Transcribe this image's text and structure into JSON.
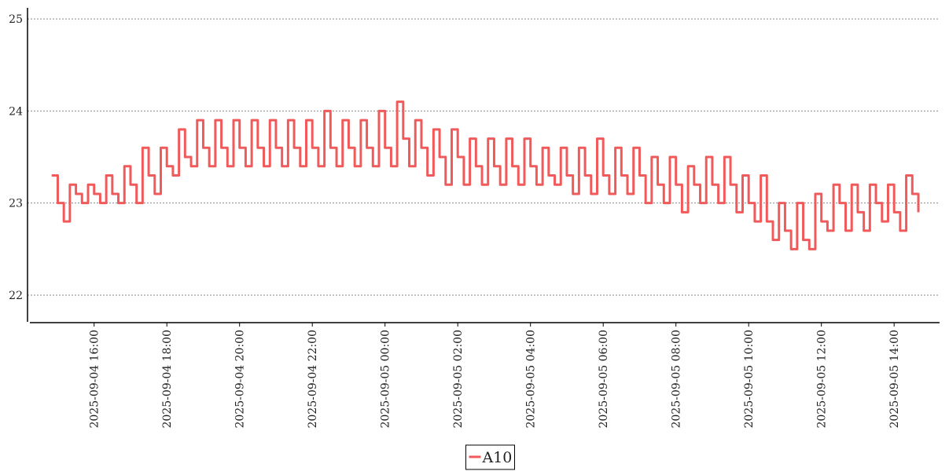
{
  "chart_data": {
    "type": "line",
    "drawstyle": "steps",
    "x": [
      "2025-09-04 14:50",
      "2025-09-04 15:00",
      "2025-09-04 15:10",
      "2025-09-04 15:20",
      "2025-09-04 15:30",
      "2025-09-04 15:40",
      "2025-09-04 15:50",
      "2025-09-04 16:00",
      "2025-09-04 16:10",
      "2025-09-04 16:20",
      "2025-09-04 16:30",
      "2025-09-04 16:40",
      "2025-09-04 16:50",
      "2025-09-04 17:00",
      "2025-09-04 17:10",
      "2025-09-04 17:20",
      "2025-09-04 17:30",
      "2025-09-04 17:40",
      "2025-09-04 17:50",
      "2025-09-04 18:00",
      "2025-09-04 18:10",
      "2025-09-04 18:20",
      "2025-09-04 18:30",
      "2025-09-04 18:40",
      "2025-09-04 18:50",
      "2025-09-04 19:00",
      "2025-09-04 19:10",
      "2025-09-04 19:20",
      "2025-09-04 19:30",
      "2025-09-04 19:40",
      "2025-09-04 19:50",
      "2025-09-04 20:00",
      "2025-09-04 20:10",
      "2025-09-04 20:20",
      "2025-09-04 20:30",
      "2025-09-04 20:40",
      "2025-09-04 20:50",
      "2025-09-04 21:00",
      "2025-09-04 21:10",
      "2025-09-04 21:20",
      "2025-09-04 21:30",
      "2025-09-04 21:40",
      "2025-09-04 21:50",
      "2025-09-04 22:00",
      "2025-09-04 22:10",
      "2025-09-04 22:20",
      "2025-09-04 22:30",
      "2025-09-04 22:40",
      "2025-09-04 22:50",
      "2025-09-04 23:00",
      "2025-09-04 23:10",
      "2025-09-04 23:20",
      "2025-09-04 23:30",
      "2025-09-04 23:40",
      "2025-09-04 23:50",
      "2025-09-05 00:00",
      "2025-09-05 00:10",
      "2025-09-05 00:20",
      "2025-09-05 00:30",
      "2025-09-05 00:40",
      "2025-09-05 00:50",
      "2025-09-05 01:00",
      "2025-09-05 01:10",
      "2025-09-05 01:20",
      "2025-09-05 01:30",
      "2025-09-05 01:40",
      "2025-09-05 01:50",
      "2025-09-05 02:00",
      "2025-09-05 02:10",
      "2025-09-05 02:20",
      "2025-09-05 02:30",
      "2025-09-05 02:40",
      "2025-09-05 02:50",
      "2025-09-05 03:00",
      "2025-09-05 03:10",
      "2025-09-05 03:20",
      "2025-09-05 03:30",
      "2025-09-05 03:40",
      "2025-09-05 03:50",
      "2025-09-05 04:00",
      "2025-09-05 04:10",
      "2025-09-05 04:20",
      "2025-09-05 04:30",
      "2025-09-05 04:40",
      "2025-09-05 04:50",
      "2025-09-05 05:00",
      "2025-09-05 05:10",
      "2025-09-05 05:20",
      "2025-09-05 05:30",
      "2025-09-05 05:40",
      "2025-09-05 05:50",
      "2025-09-05 06:00",
      "2025-09-05 06:10",
      "2025-09-05 06:20",
      "2025-09-05 06:30",
      "2025-09-05 06:40",
      "2025-09-05 06:50",
      "2025-09-05 07:00",
      "2025-09-05 07:10",
      "2025-09-05 07:20",
      "2025-09-05 07:30",
      "2025-09-05 07:40",
      "2025-09-05 07:50",
      "2025-09-05 08:00",
      "2025-09-05 08:10",
      "2025-09-05 08:20",
      "2025-09-05 08:30",
      "2025-09-05 08:40",
      "2025-09-05 08:50",
      "2025-09-05 09:00",
      "2025-09-05 09:10",
      "2025-09-05 09:20",
      "2025-09-05 09:30",
      "2025-09-05 09:40",
      "2025-09-05 09:50",
      "2025-09-05 10:00",
      "2025-09-05 10:10",
      "2025-09-05 10:20",
      "2025-09-05 10:30",
      "2025-09-05 10:40",
      "2025-09-05 10:50",
      "2025-09-05 11:00",
      "2025-09-05 11:10",
      "2025-09-05 11:20",
      "2025-09-05 11:30",
      "2025-09-05 11:40",
      "2025-09-05 11:50",
      "2025-09-05 12:00",
      "2025-09-05 12:10",
      "2025-09-05 12:20",
      "2025-09-05 12:30",
      "2025-09-05 12:40",
      "2025-09-05 12:50",
      "2025-09-05 13:00",
      "2025-09-05 13:10",
      "2025-09-05 13:20",
      "2025-09-05 13:30",
      "2025-09-05 13:40",
      "2025-09-05 13:50",
      "2025-09-05 14:00",
      "2025-09-05 14:10",
      "2025-09-05 14:20",
      "2025-09-05 14:30",
      "2025-09-05 14:40"
    ],
    "series": [
      {
        "name": "A10",
        "color": "#f05a5a",
        "values": [
          23.3,
          23.0,
          22.8,
          23.2,
          23.1,
          23.0,
          23.2,
          23.1,
          23.0,
          23.3,
          23.1,
          23.0,
          23.4,
          23.2,
          23.0,
          23.6,
          23.3,
          23.1,
          23.6,
          23.4,
          23.3,
          23.8,
          23.5,
          23.4,
          23.9,
          23.6,
          23.4,
          23.9,
          23.6,
          23.4,
          23.9,
          23.6,
          23.4,
          23.9,
          23.6,
          23.4,
          23.9,
          23.6,
          23.4,
          23.9,
          23.6,
          23.4,
          23.9,
          23.6,
          23.4,
          24.0,
          23.6,
          23.4,
          23.9,
          23.6,
          23.4,
          23.9,
          23.6,
          23.4,
          24.0,
          23.6,
          23.4,
          24.1,
          23.7,
          23.4,
          23.9,
          23.6,
          23.3,
          23.8,
          23.5,
          23.2,
          23.8,
          23.5,
          23.2,
          23.7,
          23.4,
          23.2,
          23.7,
          23.4,
          23.2,
          23.7,
          23.4,
          23.2,
          23.7,
          23.4,
          23.2,
          23.6,
          23.3,
          23.2,
          23.6,
          23.3,
          23.1,
          23.6,
          23.3,
          23.1,
          23.7,
          23.3,
          23.1,
          23.6,
          23.3,
          23.1,
          23.6,
          23.3,
          23.0,
          23.5,
          23.2,
          23.0,
          23.5,
          23.2,
          22.9,
          23.4,
          23.2,
          23.0,
          23.5,
          23.2,
          23.0,
          23.5,
          23.2,
          22.9,
          23.3,
          23.0,
          22.8,
          23.3,
          22.8,
          22.6,
          23.0,
          22.7,
          22.5,
          23.0,
          22.6,
          22.5,
          23.1,
          22.8,
          22.7,
          23.2,
          23.0,
          22.7,
          23.2,
          22.9,
          22.7,
          23.2,
          23.0,
          22.8,
          23.2,
          22.9,
          22.7,
          23.3,
          23.1,
          22.9
        ]
      }
    ],
    "xlim": [
      "2025-09-04 14:14",
      "2025-09-05 15:15"
    ],
    "xticks": [
      "2025-09-04 16:00",
      "2025-09-04 18:00",
      "2025-09-04 20:00",
      "2025-09-04 22:00",
      "2025-09-05 00:00",
      "2025-09-05 02:00",
      "2025-09-05 04:00",
      "2025-09-05 06:00",
      "2025-09-05 08:00",
      "2025-09-05 10:00",
      "2025-09-05 12:00",
      "2025-09-05 14:00"
    ],
    "ylim": [
      21.71,
      25.12
    ],
    "yticks": [
      22,
      23,
      24,
      25
    ],
    "grid": true,
    "legend": "bottom"
  }
}
